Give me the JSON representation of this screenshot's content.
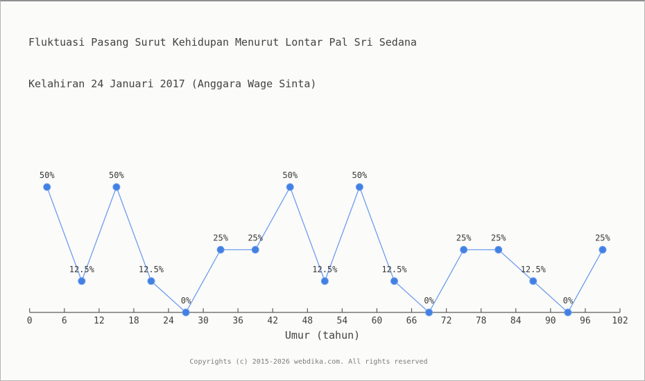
{
  "header": {
    "title_line1": "Fluktuasi Pasang Surut Kehidupan Menurut Lontar Pal Sri Sedana",
    "title_line2": "Kelahiran 24 Januari 2017 (Anggara Wage Sinta)"
  },
  "footer": {
    "copyright": "Copyrights (c) 2015-2026 webdika.com. All rights reserved"
  },
  "chart_data": {
    "type": "line",
    "title": "Fluktuasi Pasang Surut Kehidupan Menurut Lontar Pal Sri Sedana Kelahiran 24 Januari 2017 (Anggara Wage Sinta)",
    "xlabel": "Umur (tahun)",
    "ylabel": "",
    "xlim": [
      0,
      102
    ],
    "ylim": [
      0,
      100
    ],
    "x_ticks": [
      0,
      6,
      12,
      18,
      24,
      30,
      36,
      42,
      48,
      54,
      60,
      66,
      72,
      78,
      84,
      90,
      96,
      102
    ],
    "grid": false,
    "legend": "none",
    "points": [
      {
        "x": 3,
        "value": 50,
        "label": "50%"
      },
      {
        "x": 9,
        "value": 12.5,
        "label": "12.5%"
      },
      {
        "x": 15,
        "value": 50,
        "label": "50%"
      },
      {
        "x": 21,
        "value": 12.5,
        "label": "12.5%"
      },
      {
        "x": 27,
        "value": 0,
        "label": "0%"
      },
      {
        "x": 33,
        "value": 25,
        "label": "25%"
      },
      {
        "x": 39,
        "value": 25,
        "label": "25%"
      },
      {
        "x": 45,
        "value": 50,
        "label": "50%"
      },
      {
        "x": 51,
        "value": 12.5,
        "label": "12.5%"
      },
      {
        "x": 57,
        "value": 50,
        "label": "50%"
      },
      {
        "x": 63,
        "value": 12.5,
        "label": "12.5%"
      },
      {
        "x": 69,
        "value": 0,
        "label": "0%"
      },
      {
        "x": 75,
        "value": 25,
        "label": "25%"
      },
      {
        "x": 81,
        "value": 25,
        "label": "25%"
      },
      {
        "x": 87,
        "value": 12.5,
        "label": "12.5%"
      },
      {
        "x": 93,
        "value": 0,
        "label": "0%"
      },
      {
        "x": 99,
        "value": 25,
        "label": "25%"
      }
    ],
    "colors": {
      "line": "#6d9cee",
      "point_fill": "#4280e2",
      "point_edge": "#6d9cee",
      "axis": "#5c5c5c",
      "tick_label": "#3d3d3d",
      "point_label": "#383838"
    }
  }
}
